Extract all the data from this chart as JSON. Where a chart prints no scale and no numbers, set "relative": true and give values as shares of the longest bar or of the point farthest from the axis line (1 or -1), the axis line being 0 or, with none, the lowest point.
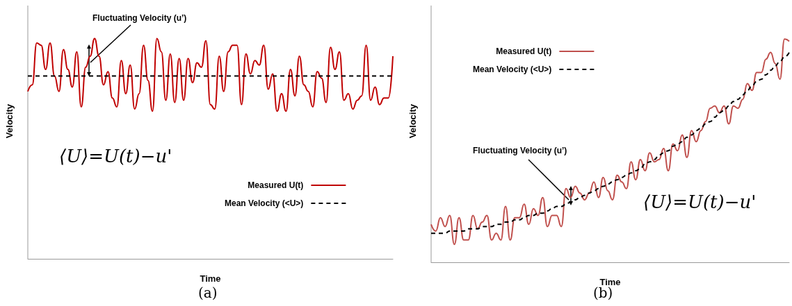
{
  "chart_data": [
    {
      "type": "line",
      "relative": true,
      "xlabel": "Time",
      "ylabel": "Velocity",
      "legend": "bottom right",
      "marker": "none",
      "grid": false,
      "annotations": [
        "Fluctuating Velocity (u’)",
        "⟨U⟩=U(t)−u'",
        "(a)"
      ],
      "categories": [
        null,
        null,
        null,
        null,
        null,
        null,
        null,
        null,
        null,
        null,
        null,
        null,
        null,
        null,
        null,
        null,
        null,
        null,
        null,
        null,
        null,
        null,
        null,
        null,
        null,
        null,
        null,
        null,
        null,
        null,
        null,
        null,
        null,
        null,
        null,
        null,
        null,
        null,
        null,
        null,
        null,
        null,
        null,
        null,
        null,
        null,
        null,
        null,
        null,
        null,
        null,
        null,
        null,
        null,
        null,
        null,
        null,
        null,
        null,
        null,
        null,
        null,
        null,
        null,
        null,
        null,
        null,
        null,
        null,
        null,
        null,
        null,
        null,
        null,
        null,
        null,
        null,
        null,
        null,
        null,
        null,
        null,
        null
      ],
      "series": [
        {
          "name": "Measured U(t)",
          "color": "#c00000",
          "line_style": "solid",
          "values": [
            0.76,
            0.79,
            0.98,
            0.97,
            0.86,
            0.98,
            0.83,
            0.76,
            0.95,
            0.86,
            0.78,
            0.94,
            0.69,
            0.87,
            0.92,
            1.0,
            0.92,
            0.79,
            0.85,
            0.73,
            0.69,
            0.9,
            0.75,
            0.88,
            0.68,
            0.75,
            0.97,
            0.81,
            0.67,
            1.0,
            0.94,
            0.72,
            0.93,
            0.71,
            0.91,
            0.72,
            0.91,
            0.8,
            0.89,
            0.87,
            0.99,
            0.7,
            0.68,
            0.92,
            0.76,
            0.94,
            0.97,
            0.97,
            0.7,
            0.93,
            0.84,
            0.9,
            0.88,
            0.97,
            0.77,
            0.84,
            0.67,
            0.75,
            0.67,
            0.86,
            0.74,
            0.92,
            0.79,
            0.76,
            0.69,
            0.85,
            0.82,
            0.71,
            0.96,
            0.86,
            0.94,
            0.72,
            0.75,
            0.68,
            0.72,
            0.74,
            0.97,
            0.72,
            0.78,
            0.7,
            0.73,
            0.73,
            0.92
          ]
        },
        {
          "name": "Mean Velocity (<U>)",
          "color": "#000000",
          "line_style": "dashed",
          "values": [
            0.83,
            0.83,
            0.83,
            0.83,
            0.83,
            0.83,
            0.83,
            0.83,
            0.83,
            0.83,
            0.83,
            0.83,
            0.83,
            0.83,
            0.83,
            0.83,
            0.83,
            0.83,
            0.83,
            0.83,
            0.83,
            0.83,
            0.83,
            0.83,
            0.83,
            0.83,
            0.83,
            0.83,
            0.83,
            0.83,
            0.83,
            0.83,
            0.83,
            0.83,
            0.83,
            0.83,
            0.83,
            0.83,
            0.83,
            0.83,
            0.83,
            0.83,
            0.83,
            0.83,
            0.83,
            0.83,
            0.83,
            0.83,
            0.83,
            0.83,
            0.83,
            0.83,
            0.83,
            0.83,
            0.83,
            0.83,
            0.83,
            0.83,
            0.83,
            0.83,
            0.83,
            0.83,
            0.83,
            0.83,
            0.83,
            0.83,
            0.83,
            0.83,
            0.83,
            0.83,
            0.83,
            0.83,
            0.83,
            0.83,
            0.83,
            0.83,
            0.83,
            0.83,
            0.83,
            0.83,
            0.83,
            0.83,
            0.83
          ]
        }
      ]
    },
    {
      "type": "line",
      "relative": true,
      "xlabel": "Time",
      "ylabel": "Velocity",
      "legend": "top left",
      "marker": "none",
      "grid": false,
      "annotations": [
        "Fluctuating Velocity (u’)",
        "⟨U⟩=U(t)−u'",
        "(b)"
      ],
      "categories": [
        null,
        null,
        null,
        null,
        null,
        null,
        null,
        null,
        null,
        null,
        null,
        null,
        null,
        null,
        null,
        null,
        null,
        null,
        null,
        null,
        null,
        null,
        null,
        null,
        null,
        null,
        null,
        null,
        null,
        null,
        null,
        null,
        null,
        null,
        null,
        null,
        null,
        null,
        null,
        null,
        null,
        null,
        null,
        null,
        null,
        null,
        null,
        null,
        null,
        null,
        null,
        null,
        null,
        null,
        null,
        null,
        null,
        null,
        null,
        null,
        null,
        null,
        null,
        null,
        null,
        null,
        null,
        null,
        null,
        null,
        null,
        null,
        null,
        null,
        null,
        null,
        null,
        null
      ],
      "series": [
        {
          "name": "Measured U(t)",
          "color": "#c0504d",
          "line_style": "solid",
          "values": [
            0.17,
            0.14,
            0.2,
            0.16,
            0.21,
            0.08,
            0.2,
            0.1,
            0.1,
            0.21,
            0.15,
            0.18,
            0.21,
            0.1,
            0.13,
            0.1,
            0.25,
            0.1,
            0.2,
            0.2,
            0.26,
            0.17,
            0.24,
            0.21,
            0.29,
            0.16,
            0.21,
            0.21,
            0.16,
            0.33,
            0.29,
            0.34,
            0.31,
            0.28,
            0.31,
            0.36,
            0.29,
            0.38,
            0.32,
            0.28,
            0.39,
            0.36,
            0.33,
            0.45,
            0.37,
            0.46,
            0.41,
            0.49,
            0.45,
            0.46,
            0.51,
            0.41,
            0.53,
            0.5,
            0.57,
            0.47,
            0.59,
            0.54,
            0.59,
            0.63,
            0.69,
            0.7,
            0.67,
            0.7,
            0.62,
            0.7,
            0.69,
            0.73,
            0.8,
            0.77,
            0.85,
            0.85,
            0.91,
            0.94,
            0.89,
            0.82,
            1.0,
            0.99
          ]
        },
        {
          "name": "Mean Velocity (<U>)",
          "color": "#000000",
          "line_style": "dashed",
          "values": [
            0.13,
            0.13,
            0.13,
            0.13,
            0.14,
            0.14,
            0.14,
            0.14,
            0.15,
            0.15,
            0.15,
            0.16,
            0.16,
            0.16,
            0.17,
            0.17,
            0.18,
            0.18,
            0.19,
            0.19,
            0.2,
            0.21,
            0.21,
            0.22,
            0.22,
            0.23,
            0.24,
            0.25,
            0.25,
            0.26,
            0.27,
            0.28,
            0.29,
            0.3,
            0.31,
            0.32,
            0.33,
            0.34,
            0.35,
            0.36,
            0.37,
            0.38,
            0.39,
            0.4,
            0.41,
            0.42,
            0.44,
            0.45,
            0.46,
            0.48,
            0.49,
            0.5,
            0.52,
            0.53,
            0.54,
            0.56,
            0.57,
            0.59,
            0.6,
            0.62,
            0.63,
            0.65,
            0.67,
            0.68,
            0.7,
            0.72,
            0.73,
            0.75,
            0.77,
            0.79,
            0.81,
            0.82,
            0.84,
            0.86,
            0.88,
            0.9,
            0.92,
            0.94
          ]
        }
      ]
    }
  ]
}
